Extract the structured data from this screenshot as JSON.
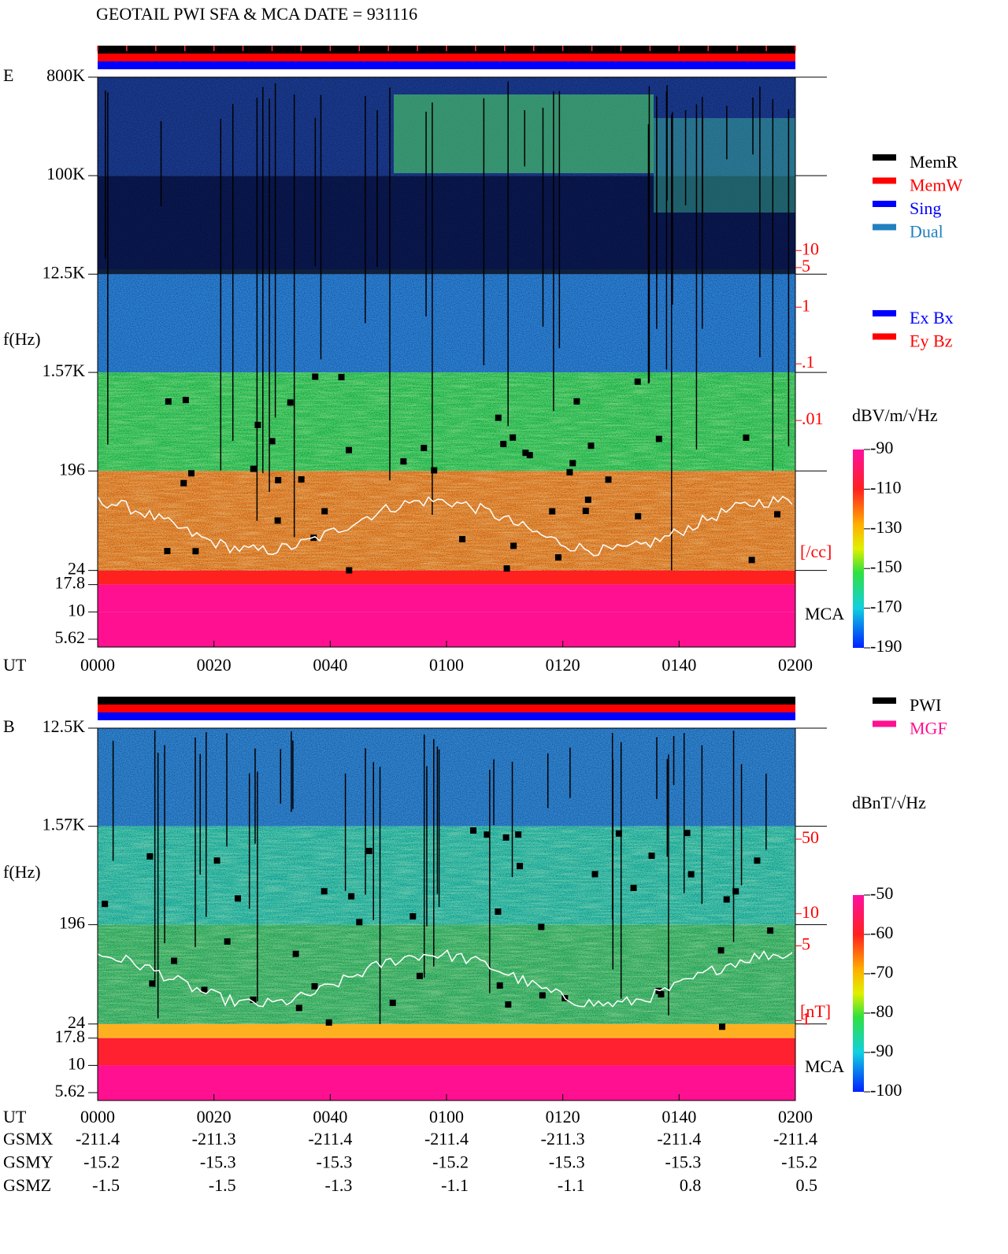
{
  "title": "GEOTAIL  PWI SFA & MCA   DATE = 931116",
  "chart_data": [
    {
      "type": "spectrogram",
      "panel_label": "E",
      "ylabel": "f(Hz)",
      "xlabel": "UT",
      "log_y": true,
      "ylim": [
        4.76,
        800000
      ],
      "yticks": [
        {
          "value": 800000,
          "label": "800K"
        },
        {
          "value": 100000,
          "label": "100K"
        },
        {
          "value": 12500,
          "label": "12.5K"
        },
        {
          "value": 1570,
          "label": "1.57K"
        },
        196,
        24,
        17.8,
        10,
        5.62
      ],
      "xlim": [
        0,
        120
      ],
      "xticks": [
        {
          "value": 0,
          "label": "0000"
        },
        {
          "value": 20,
          "label": "0020"
        },
        {
          "value": 40,
          "label": "0040"
        },
        {
          "value": 60,
          "label": "0100"
        },
        {
          "value": 80,
          "label": "0120"
        },
        {
          "value": 100,
          "label": "0140"
        },
        {
          "value": 120,
          "label": "0200"
        }
      ],
      "y2lim": [
        1e-06,
        11500
      ],
      "y2label": "[/cc]",
      "y2ticks": [
        10,
        5,
        1,
        {
          "value": 0.1,
          "label": ".1"
        },
        {
          "value": 0.01,
          "label": ".01"
        }
      ],
      "mca_label": "MCA",
      "colorbar": {
        "label": "dBV/m/√Hz",
        "lim": [
          -190,
          -90
        ],
        "ticks": [
          -90,
          -110,
          -130,
          -150,
          -170,
          -190
        ]
      },
      "legend": [
        {
          "name": "MemR",
          "color": "#000000"
        },
        {
          "name": "MemW",
          "color": "#ff0000"
        },
        {
          "name": "Sing",
          "color": "#0000ff"
        },
        {
          "name": "Dual",
          "color": "#2080c0"
        }
      ],
      "legend2": [
        {
          "name": "Ex Bx",
          "color": "#0000ff"
        },
        {
          "name": "Ey Bz",
          "color": "#ff0000"
        }
      ]
    },
    {
      "type": "spectrogram",
      "panel_label": "B",
      "ylabel": "f(Hz)",
      "xlabel": "UT",
      "log_y": true,
      "ylim": [
        4.76,
        12500
      ],
      "yticks": [
        {
          "value": 12500,
          "label": "12.5K"
        },
        {
          "value": 1570,
          "label": "1.57K"
        },
        196,
        24,
        17.8,
        10,
        5.62
      ],
      "xlim": [
        0,
        120
      ],
      "xticks": [
        {
          "value": 0,
          "label": "0000"
        },
        {
          "value": 20,
          "label": "0020"
        },
        {
          "value": 40,
          "label": "0040"
        },
        {
          "value": 60,
          "label": "0100"
        },
        {
          "value": 80,
          "label": "0120"
        },
        {
          "value": 100,
          "label": "0140"
        },
        {
          "value": 120,
          "label": "0200"
        }
      ],
      "y2lim": [
        0.178,
        548
      ],
      "y2label": "[nT]",
      "y2ticks": [
        50,
        10,
        5,
        1
      ],
      "mca_label": "MCA",
      "colorbar": {
        "label": "dBnT/√Hz",
        "lim": [
          -100,
          -50
        ],
        "ticks": [
          -50,
          -60,
          -70,
          -80,
          -90,
          -100
        ]
      },
      "legend": [
        {
          "name": "PWI",
          "color": "#000000"
        },
        {
          "name": "MGF",
          "color": "#ff1090"
        }
      ]
    }
  ],
  "orbit": {
    "rows": [
      {
        "name": "GSMX",
        "values": [
          -211.4,
          -211.3,
          -211.4,
          -211.4,
          -211.3,
          -211.4,
          -211.4
        ]
      },
      {
        "name": "GSMY",
        "values": [
          -15.2,
          -15.3,
          -15.3,
          -15.2,
          -15.3,
          -15.3,
          -15.2
        ]
      },
      {
        "name": "GSMZ",
        "values": [
          -1.5,
          -1.5,
          -1.3,
          -1.1,
          -1.1,
          0.8,
          0.5
        ]
      }
    ]
  }
}
